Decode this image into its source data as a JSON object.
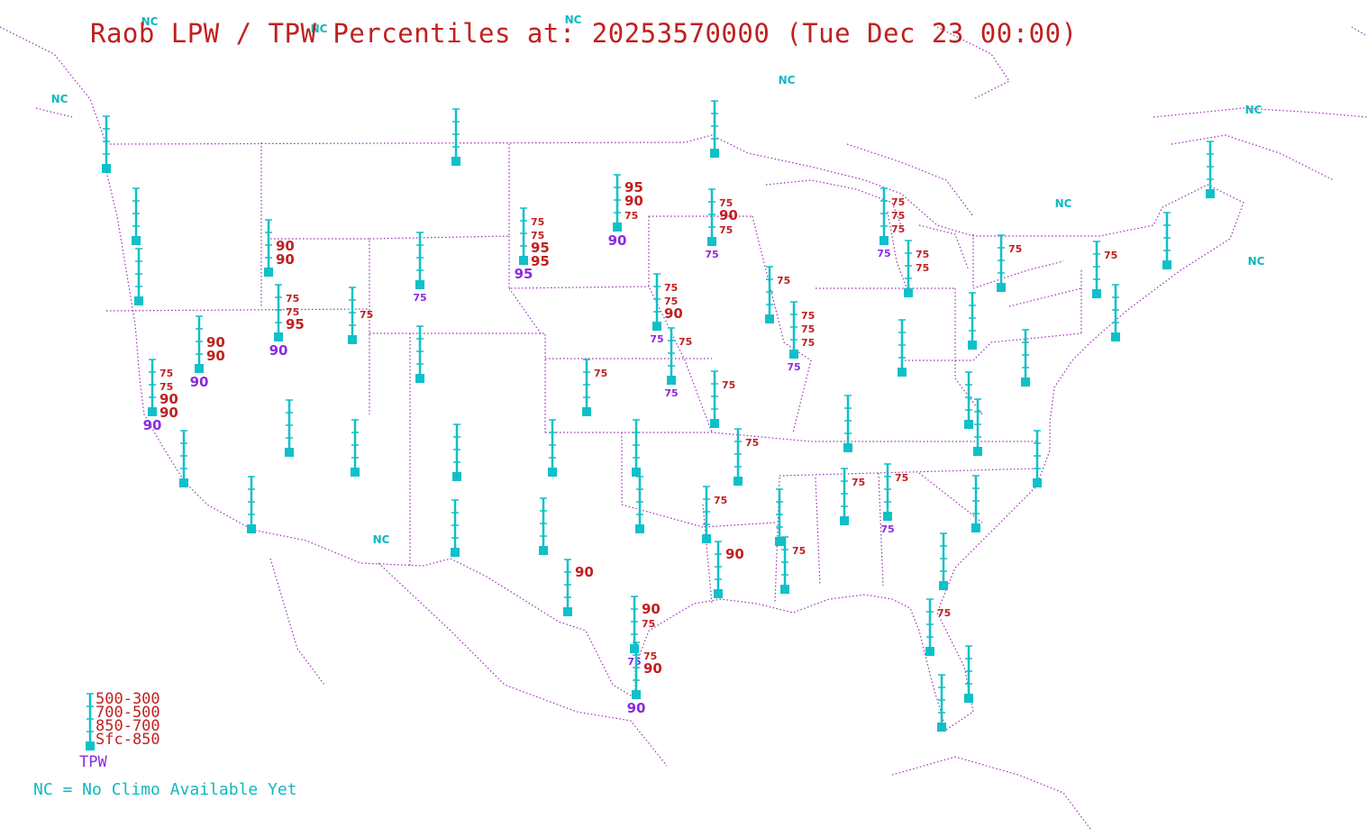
{
  "title": "Raob LPW / TPW Percentiles at: 20253570000 (Tue Dec 23 00:00)",
  "legend": {
    "layers": [
      "500-300",
      "700-500",
      "850-700",
      "Sfc-850"
    ],
    "tpw_label": "TPW",
    "nc_note": "NC = No Climo Available Yet"
  },
  "colors": {
    "station": "#10c0c8",
    "layer_text": "#c02020",
    "tpw_text": "#8a2be2",
    "boundary": "#9b2fb3",
    "nc_text": "#10b8c0"
  },
  "nc_label": "NC",
  "stations": [
    {
      "id": "quillayute",
      "values": [
        "",
        "",
        "",
        ""
      ],
      "tpw": ""
    },
    {
      "id": "salem",
      "values": [
        "",
        "",
        "",
        ""
      ],
      "tpw": ""
    },
    {
      "id": "medford",
      "values": [
        "",
        "",
        "",
        ""
      ],
      "tpw": ""
    },
    {
      "id": "boise",
      "values": [
        "",
        "90",
        "90",
        ""
      ],
      "tpw": ""
    },
    {
      "id": "elko",
      "values": [
        "75",
        "75",
        "95",
        ""
      ],
      "tpw": "90"
    },
    {
      "id": "reno",
      "values": [
        "",
        "90",
        "90",
        ""
      ],
      "tpw": "90"
    },
    {
      "id": "oakland",
      "values": [
        "75",
        "75",
        "90",
        "90"
      ],
      "tpw": "90"
    },
    {
      "id": "vandenberg",
      "values": [
        "",
        "",
        "",
        ""
      ],
      "tpw": ""
    },
    {
      "id": "san-diego",
      "values": [
        "",
        "",
        "",
        ""
      ],
      "tpw": ""
    },
    {
      "id": "las-vegas",
      "values": [
        "",
        "",
        "",
        ""
      ],
      "tpw": ""
    },
    {
      "id": "salt-lake-city",
      "values": [
        "",
        "75",
        "",
        ""
      ],
      "tpw": ""
    },
    {
      "id": "great-falls",
      "values": [
        "",
        "",
        "",
        ""
      ],
      "tpw": ""
    },
    {
      "id": "riverton",
      "values": [
        "",
        "",
        "",
        ""
      ],
      "tpw": "75"
    },
    {
      "id": "grand-junction",
      "values": [
        "",
        "",
        "",
        ""
      ],
      "tpw": ""
    },
    {
      "id": "flagstaff",
      "values": [
        "",
        "",
        "",
        ""
      ],
      "tpw": ""
    },
    {
      "id": "tucson",
      "values": [
        "",
        "",
        "",
        ""
      ],
      "tpw": ""
    },
    {
      "id": "albuquerque",
      "values": [
        "",
        "",
        "",
        ""
      ],
      "tpw": ""
    },
    {
      "id": "santa-teresa",
      "values": [
        "",
        "",
        "",
        ""
      ],
      "tpw": ""
    },
    {
      "id": "rapid-city",
      "values": [
        "75",
        "75",
        "95",
        "95"
      ],
      "tpw": "95"
    },
    {
      "id": "bismarck",
      "values": [
        "95",
        "90",
        "75",
        ""
      ],
      "tpw": "90"
    },
    {
      "id": "aberdeen-mn",
      "values": [
        "75",
        "90",
        "75",
        ""
      ],
      "tpw": "75"
    },
    {
      "id": "international-falls",
      "values": [
        "",
        "",
        "",
        ""
      ],
      "tpw": ""
    },
    {
      "id": "north-platte",
      "values": [
        "",
        "",
        "",
        ""
      ],
      "tpw": ""
    },
    {
      "id": "omaha",
      "values": [
        "75",
        "75",
        "90",
        ""
      ],
      "tpw": "75"
    },
    {
      "id": "topeka",
      "values": [
        "75",
        "",
        "",
        ""
      ],
      "tpw": "75"
    },
    {
      "id": "dodge-city",
      "values": [
        "75",
        "",
        "",
        ""
      ],
      "tpw": ""
    },
    {
      "id": "amarillo",
      "values": [
        "",
        "",
        "",
        ""
      ],
      "tpw": ""
    },
    {
      "id": "midland",
      "values": [
        "",
        "",
        "",
        ""
      ],
      "tpw": ""
    },
    {
      "id": "del-rio",
      "values": [
        "90",
        "",
        "",
        ""
      ],
      "tpw": ""
    },
    {
      "id": "norman",
      "values": [
        "75",
        "",
        "",
        ""
      ],
      "tpw": ""
    },
    {
      "id": "fort-worth",
      "values": [
        "75",
        "",
        "",
        ""
      ],
      "tpw": ""
    },
    {
      "id": "corpus-christi",
      "values": [
        "90",
        "75",
        "",
        ""
      ],
      "tpw": "75"
    },
    {
      "id": "brownsville",
      "values": [
        "75",
        "90",
        "",
        ""
      ],
      "tpw": "90"
    },
    {
      "id": "springfield",
      "values": [
        "75",
        "",
        "",
        ""
      ],
      "tpw": ""
    },
    {
      "id": "little-rock",
      "values": [
        "",
        "",
        "",
        ""
      ],
      "tpw": ""
    },
    {
      "id": "shreveport",
      "values": [
        "90",
        "",
        "",
        ""
      ],
      "tpw": ""
    },
    {
      "id": "lake-charles",
      "values": [
        "75",
        "",
        "",
        ""
      ],
      "tpw": ""
    },
    {
      "id": "jackson",
      "values": [
        "75",
        "",
        "",
        ""
      ],
      "tpw": ""
    },
    {
      "id": "slidell",
      "values": [
        "75",
        "",
        "",
        ""
      ],
      "tpw": ""
    },
    {
      "id": "davenport",
      "values": [
        "75",
        "75",
        "75",
        ""
      ],
      "tpw": "75"
    },
    {
      "id": "lincoln-il",
      "values": [
        "75",
        "75",
        "75",
        ""
      ],
      "tpw": "75"
    },
    {
      "id": "green-bay",
      "values": [
        "75",
        "75",
        "",
        ""
      ],
      "tpw": ""
    },
    {
      "id": "gaylord",
      "values": [
        "75",
        "",
        "",
        ""
      ],
      "tpw": ""
    },
    {
      "id": "detroit",
      "values": [
        "",
        "",
        "",
        ""
      ],
      "tpw": ""
    },
    {
      "id": "wilmington-oh",
      "values": [
        "",
        "",
        "",
        ""
      ],
      "tpw": ""
    },
    {
      "id": "nashville",
      "values": [
        "75",
        "",
        "",
        ""
      ],
      "tpw": "75"
    },
    {
      "id": "birmingham",
      "values": [
        "",
        "",
        "",
        ""
      ],
      "tpw": ""
    },
    {
      "id": "peachtree-city",
      "values": [
        "",
        "",
        "",
        ""
      ],
      "tpw": ""
    },
    {
      "id": "pittsburgh",
      "values": [
        "75",
        "",
        "",
        ""
      ],
      "tpw": ""
    },
    {
      "id": "buffalo",
      "values": [
        "",
        "",
        "",
        ""
      ],
      "tpw": ""
    },
    {
      "id": "albany",
      "values": [
        "",
        "",
        "",
        ""
      ],
      "tpw": ""
    },
    {
      "id": "upton",
      "values": [
        "",
        "",
        "",
        ""
      ],
      "tpw": ""
    },
    {
      "id": "sterling",
      "values": [
        "",
        "",
        "",
        ""
      ],
      "tpw": ""
    },
    {
      "id": "blacksburg",
      "values": [
        "",
        "",
        "",
        ""
      ],
      "tpw": ""
    },
    {
      "id": "greensboro",
      "values": [
        "",
        "",
        "",
        ""
      ],
      "tpw": ""
    },
    {
      "id": "newport",
      "values": [
        "75",
        "",
        "",
        ""
      ],
      "tpw": ""
    },
    {
      "id": "charleston",
      "values": [
        "",
        "",
        "",
        ""
      ],
      "tpw": ""
    },
    {
      "id": "jacksonville",
      "values": [
        "",
        "",
        "",
        ""
      ],
      "tpw": ""
    },
    {
      "id": "tallahassee",
      "values": [
        "",
        "",
        "",
        ""
      ],
      "tpw": ""
    },
    {
      "id": "tampa",
      "values": [
        "",
        "",
        "",
        ""
      ],
      "tpw": ""
    },
    {
      "id": "miami",
      "values": [
        "",
        "",
        "",
        ""
      ],
      "tpw": ""
    },
    {
      "id": "key-west",
      "values": [
        "",
        "",
        "",
        ""
      ],
      "tpw": ""
    },
    {
      "id": "gray",
      "values": [
        "",
        "",
        "",
        ""
      ],
      "tpw": ""
    },
    {
      "id": "caribou",
      "values": [
        "",
        "",
        "",
        ""
      ],
      "tpw": ""
    }
  ]
}
